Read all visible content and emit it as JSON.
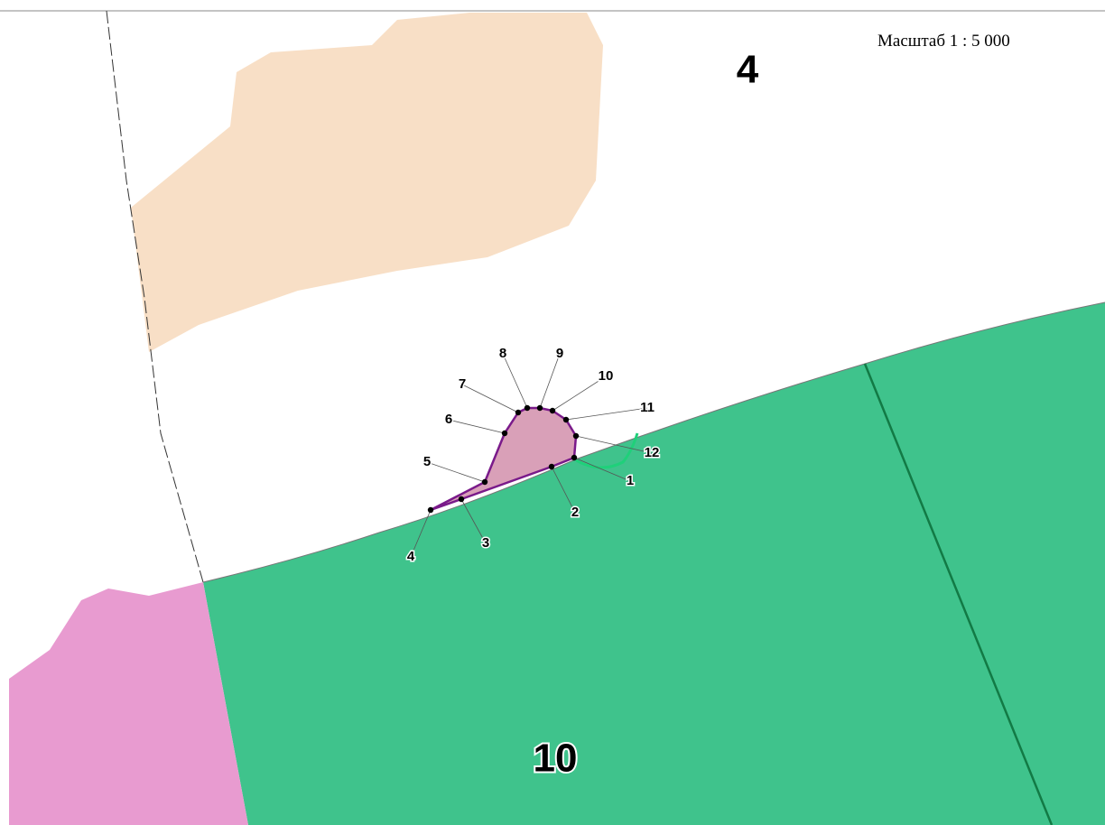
{
  "scale": "Масштаб 1 : 5 000",
  "parcels": [
    "4",
    "10"
  ],
  "points": [
    "1",
    "2",
    "3",
    "4",
    "5",
    "6",
    "7",
    "8",
    "9",
    "10",
    "11",
    "12"
  ]
}
